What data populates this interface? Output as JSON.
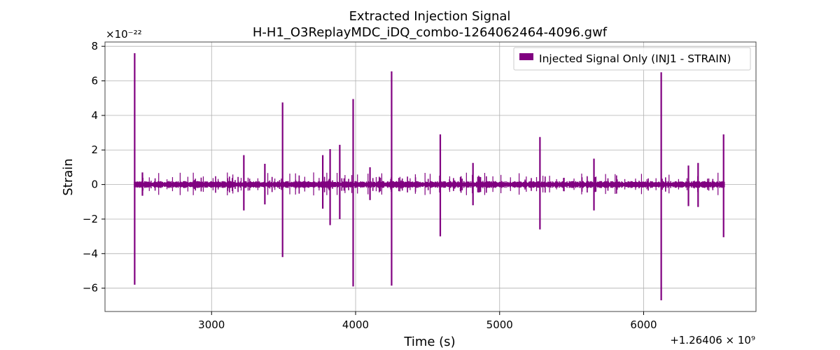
{
  "chart_data": {
    "type": "line",
    "title": "Extracted Injection Signal",
    "subtitle": "H-H1_O3ReplayMDC_iDQ_combo-1264062464-4096.gwf",
    "xlabel": "Time (s)",
    "ylabel": "Strain",
    "y_multiplier_label": "×10⁻²²",
    "x_offset_label": "+1.26406 × 10⁹",
    "xlim": [
      2260,
      6780
    ],
    "ylim": [
      -7.35,
      8.25
    ],
    "x_ticks": [
      3000,
      4000,
      5000,
      6000
    ],
    "x_tick_labels": [
      "3000",
      "4000",
      "5000",
      "6000"
    ],
    "y_ticks": [
      -6,
      -4,
      -2,
      0,
      2,
      4,
      6,
      8
    ],
    "y_tick_labels": [
      "−6",
      "−4",
      "−2",
      "0",
      "2",
      "4",
      "6",
      "8"
    ],
    "grid": true,
    "legend_position": "top-right",
    "series": [
      {
        "name": "Injected Signal Only (INJ1 - STRAIN)",
        "color": "#800080",
        "baseline_x_range": [
          2464,
          6560
        ],
        "spikes": [
          {
            "x": 2466,
            "y_max": 7.6,
            "y_min": -5.8
          },
          {
            "x": 2520,
            "y_max": 0.7,
            "y_min": -0.65
          },
          {
            "x": 3224,
            "y_max": 1.7,
            "y_min": -1.5
          },
          {
            "x": 3370,
            "y_max": 1.2,
            "y_min": -1.15
          },
          {
            "x": 3493,
            "y_max": 4.75,
            "y_min": -4.2
          },
          {
            "x": 3772,
            "y_max": 1.7,
            "y_min": -1.4
          },
          {
            "x": 3823,
            "y_max": 2.05,
            "y_min": -2.35
          },
          {
            "x": 3890,
            "y_max": 2.3,
            "y_min": -2.0
          },
          {
            "x": 3983,
            "y_max": 4.95,
            "y_min": -5.9
          },
          {
            "x": 4100,
            "y_max": 1.0,
            "y_min": -0.9
          },
          {
            "x": 4250,
            "y_max": 6.55,
            "y_min": -5.85
          },
          {
            "x": 4588,
            "y_max": 2.9,
            "y_min": -3.0
          },
          {
            "x": 4815,
            "y_max": 1.25,
            "y_min": -1.2
          },
          {
            "x": 5280,
            "y_max": 2.75,
            "y_min": -2.6
          },
          {
            "x": 5655,
            "y_max": 1.5,
            "y_min": -1.5
          },
          {
            "x": 6122,
            "y_max": 6.5,
            "y_min": -6.7
          },
          {
            "x": 6311,
            "y_max": 1.1,
            "y_min": -1.25
          },
          {
            "x": 6378,
            "y_max": 1.25,
            "y_min": -1.3
          },
          {
            "x": 6555,
            "y_max": 2.9,
            "y_min": -3.05
          }
        ]
      }
    ]
  }
}
